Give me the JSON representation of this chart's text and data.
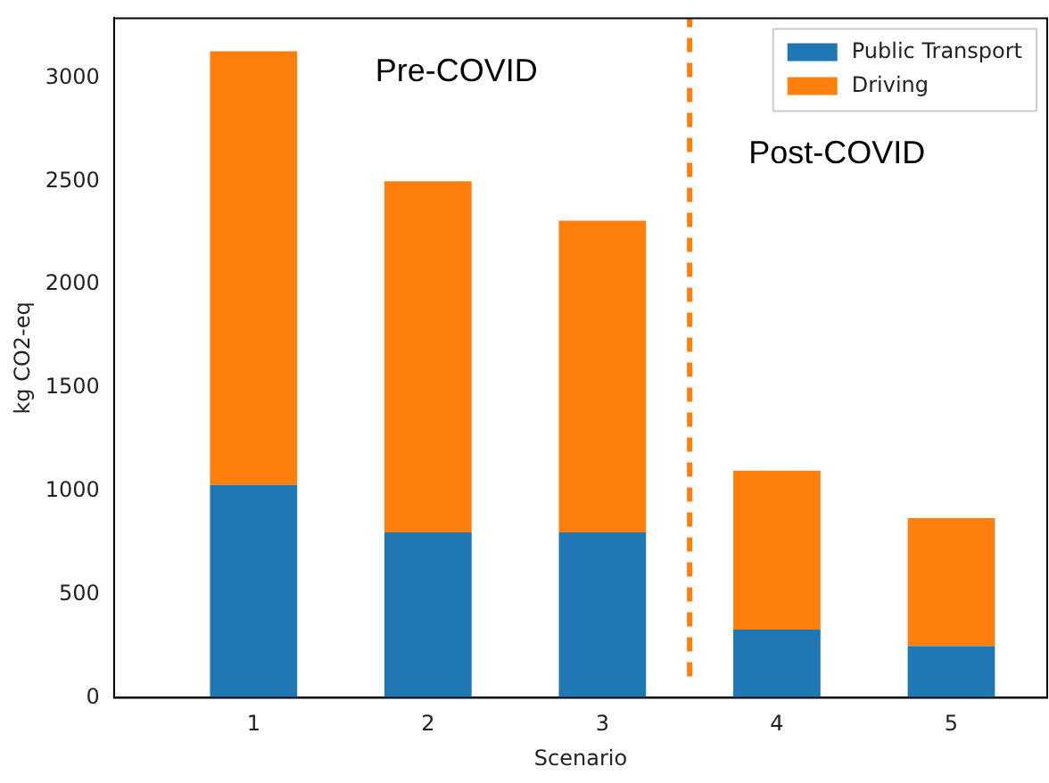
{
  "chart_data": {
    "type": "bar",
    "stacked": true,
    "xlabel": "Scenario",
    "ylabel": "kg CO2-eq",
    "x": [
      1,
      2,
      3,
      4,
      5
    ],
    "xlim": [
      0.2,
      5.55
    ],
    "xticks": [
      1,
      2,
      3,
      4,
      5
    ],
    "ylim": [
      0,
      3290
    ],
    "yticks": [
      0,
      500,
      1000,
      1500,
      2000,
      2500,
      3000
    ],
    "series": [
      {
        "name": "Public Transport",
        "color": "#1f77b4",
        "values": [
          1030,
          800,
          800,
          330,
          250
        ]
      },
      {
        "name": "Driving",
        "color": "#ff7f0e",
        "values": [
          2100,
          1700,
          1510,
          770,
          620
        ]
      }
    ],
    "ref_lines": [
      {
        "axis": "x",
        "value": 3.5,
        "color": "#ff7f0e",
        "line_style": "dashed"
      }
    ],
    "annotations": [
      "Pre-COVID",
      "Post-COVID"
    ],
    "legend": "top right",
    "grid": false
  }
}
